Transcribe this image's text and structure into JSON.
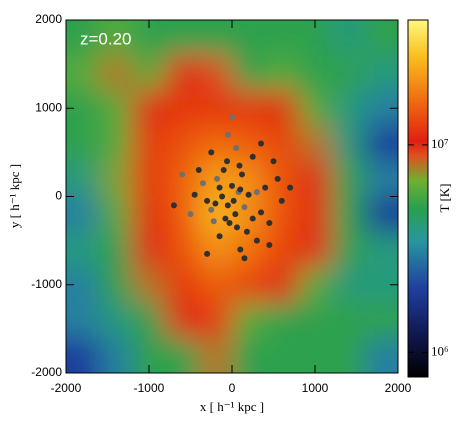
{
  "chart_data": {
    "type": "heatmap",
    "annotation": "z=0.20",
    "x_label": "x [ h⁻¹ kpc ]",
    "y_label": "y [ h⁻¹ kpc ]",
    "colorbar_label": "T [K]",
    "xlim": [
      -2000,
      2000
    ],
    "ylim": [
      -2000,
      2000
    ],
    "xticks": [
      -2000,
      -1000,
      0,
      1000,
      2000
    ],
    "yticks": [
      -2000,
      -1000,
      0,
      1000,
      2000
    ],
    "clim": [
      760000,
      40000000
    ],
    "log_color": true,
    "cticks": [
      {
        "value": 1000000,
        "label": "10⁶"
      },
      {
        "value": 10000000,
        "label": "10⁷"
      }
    ],
    "x": [
      -1800,
      -1400,
      -1000,
      -600,
      -200,
      200,
      600,
      1000,
      1400,
      1800
    ],
    "y": [
      1800,
      1400,
      1000,
      600,
      200,
      -200,
      -600,
      -1000,
      -1400,
      -1800
    ],
    "T": [
      [
        5000000,
        6000000,
        5000000,
        5000000,
        5000000,
        5000000,
        5000000,
        5000000,
        4000000,
        5000000
      ],
      [
        6000000,
        8000000,
        6000000,
        10000000,
        9000000,
        5000000,
        6000000,
        5000000,
        5000000,
        4000000
      ],
      [
        5000000,
        6000000,
        10000000,
        12000000,
        12000000,
        12000000,
        11000000,
        6000000,
        4000000,
        3000000
      ],
      [
        5000000,
        6000000,
        12000000,
        14000000,
        16000000,
        15000000,
        13000000,
        8000000,
        4000000,
        2000000
      ],
      [
        4000000,
        7000000,
        12000000,
        15000000,
        22000000,
        20000000,
        14000000,
        10000000,
        5000000,
        3000000
      ],
      [
        3000000,
        6000000,
        11000000,
        15000000,
        25000000,
        20000000,
        14000000,
        11000000,
        5000000,
        2000000
      ],
      [
        4000000,
        5000000,
        10000000,
        14000000,
        20000000,
        17000000,
        13000000,
        10000000,
        5000000,
        4000000
      ],
      [
        3000000,
        5000000,
        8000000,
        12000000,
        15000000,
        13000000,
        10000000,
        6000000,
        4000000,
        4000000
      ],
      [
        3000000,
        4000000,
        5000000,
        10000000,
        12000000,
        6000000,
        5000000,
        5000000,
        5000000,
        5000000
      ],
      [
        2000000,
        3000000,
        5000000,
        5000000,
        8000000,
        5000000,
        5000000,
        5000000,
        5000000,
        3000000
      ]
    ],
    "points": {
      "color": "#303030",
      "x": [
        -50,
        -120,
        20,
        80,
        -200,
        -150,
        40,
        150,
        -80,
        0,
        100,
        -250,
        200,
        -30,
        60,
        -180,
        120,
        -100,
        250,
        300,
        -300,
        350,
        400,
        -350,
        180,
        -60,
        90,
        -220,
        450,
        -450,
        550,
        -500,
        600,
        250,
        -150,
        50,
        -400,
        300,
        500,
        -600,
        700,
        -700,
        100,
        -50,
        350,
        150,
        -250,
        0,
        450,
        -300
      ],
      "y": [
        -100,
        0,
        -50,
        50,
        -80,
        100,
        -200,
        -120,
        -250,
        120,
        80,
        -150,
        20,
        -300,
        -350,
        200,
        250,
        300,
        -250,
        50,
        -50,
        -180,
        100,
        150,
        -400,
        400,
        350,
        -280,
        -300,
        20,
        200,
        -200,
        -50,
        450,
        -450,
        550,
        300,
        -500,
        400,
        250,
        100,
        -100,
        -600,
        700,
        600,
        -700,
        500,
        900,
        -550,
        -650
      ]
    }
  }
}
